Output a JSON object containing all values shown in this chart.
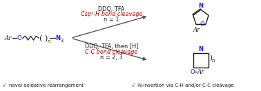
{
  "bg_color": "#ffffff",
  "arrow_color": "#555555",
  "red_color": "#cc0000",
  "blue_color": "#1a1aff",
  "black": "#1a1a1a",
  "top_arrow_label1": "DDQ, TFA",
  "top_italic_label": "Csp³-H bond cleavage",
  "top_n_label": "n = 1",
  "bot_arrow_label1": "DDQ, TFA, then [H]",
  "bot_italic_label": "C-C bond cleavage",
  "bot_n_label": "n = 2, 3",
  "footer_left": "√  novel oxidative rearrangement",
  "footer_right": "√  N-insertion via C-H and/or C-C cleavage",
  "fs_base": 6.2,
  "fs_small": 4.8,
  "fs_footer": 5.0
}
